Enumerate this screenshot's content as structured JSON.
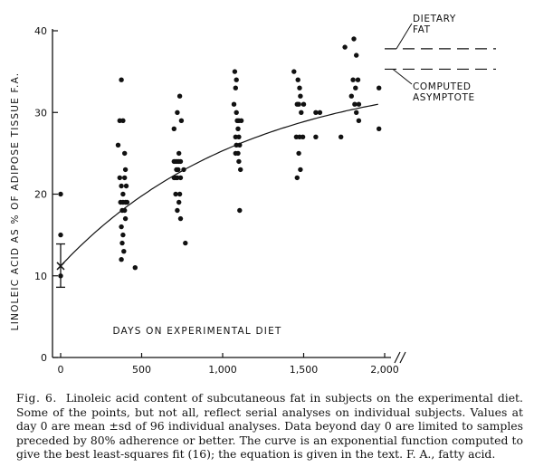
{
  "chart_data": {
    "type": "scatter",
    "xlabel": "DAYS ON EXPERIMENTAL DIET",
    "ylabel": "LINOLEIC ACID AS % OF ADIPOSE TISSUE F.A.",
    "xlim": [
      0,
      2000
    ],
    "ylim": [
      0,
      40
    ],
    "x_ticks": [
      "0",
      "500",
      "1,000",
      "1,500",
      "2,000"
    ],
    "y_ticks": [
      "0",
      "10",
      "20",
      "30",
      "40"
    ],
    "day0_mean": {
      "x": 0,
      "y": 11.2,
      "low": 8.6,
      "high": 13.9
    },
    "horizontal_lines": [
      {
        "label": "DIETARY FAT",
        "y": 37.8
      },
      {
        "label": "COMPUTED ASYMPTOTE",
        "y": 35.3
      }
    ],
    "fit_curve": {
      "type": "exponential",
      "x_range": [
        0,
        1960
      ],
      "y0": 11.2,
      "asymptote": 35.3,
      "rate_per_day": 0.00088
    },
    "points": [
      [
        0,
        20
      ],
      [
        0,
        15
      ],
      [
        0,
        10
      ],
      [
        355,
        26
      ],
      [
        365,
        29
      ],
      [
        375,
        34
      ],
      [
        385,
        29
      ],
      [
        395,
        25
      ],
      [
        400,
        23
      ],
      [
        365,
        22
      ],
      [
        375,
        21
      ],
      [
        385,
        20
      ],
      [
        395,
        22
      ],
      [
        405,
        21
      ],
      [
        370,
        19
      ],
      [
        385,
        19
      ],
      [
        400,
        19
      ],
      [
        410,
        19
      ],
      [
        380,
        18
      ],
      [
        395,
        18
      ],
      [
        400,
        17
      ],
      [
        375,
        16
      ],
      [
        385,
        15
      ],
      [
        380,
        14
      ],
      [
        390,
        13
      ],
      [
        375,
        12
      ],
      [
        460,
        11
      ],
      [
        700,
        28
      ],
      [
        720,
        30
      ],
      [
        735,
        32
      ],
      [
        745,
        29
      ],
      [
        730,
        25
      ],
      [
        700,
        24
      ],
      [
        710,
        24
      ],
      [
        720,
        24
      ],
      [
        730,
        24
      ],
      [
        740,
        24
      ],
      [
        715,
        23
      ],
      [
        725,
        23
      ],
      [
        700,
        22
      ],
      [
        710,
        22
      ],
      [
        720,
        22
      ],
      [
        740,
        22
      ],
      [
        760,
        23
      ],
      [
        710,
        20
      ],
      [
        735,
        20
      ],
      [
        730,
        19
      ],
      [
        720,
        18
      ],
      [
        740,
        17
      ],
      [
        770,
        14
      ],
      [
        1075,
        35
      ],
      [
        1085,
        34
      ],
      [
        1080,
        33
      ],
      [
        1070,
        31
      ],
      [
        1085,
        30
      ],
      [
        1090,
        29
      ],
      [
        1100,
        29
      ],
      [
        1115,
        29
      ],
      [
        1095,
        28
      ],
      [
        1080,
        27
      ],
      [
        1100,
        27
      ],
      [
        1085,
        26
      ],
      [
        1105,
        26
      ],
      [
        1080,
        25
      ],
      [
        1095,
        25
      ],
      [
        1100,
        24
      ],
      [
        1110,
        23
      ],
      [
        1105,
        18
      ],
      [
        1440,
        35
      ],
      [
        1465,
        34
      ],
      [
        1475,
        33
      ],
      [
        1480,
        32
      ],
      [
        1460,
        31
      ],
      [
        1470,
        31
      ],
      [
        1485,
        30
      ],
      [
        1500,
        31
      ],
      [
        1455,
        27
      ],
      [
        1475,
        27
      ],
      [
        1495,
        27
      ],
      [
        1575,
        30
      ],
      [
        1600,
        30
      ],
      [
        1575,
        27
      ],
      [
        1470,
        25
      ],
      [
        1480,
        23
      ],
      [
        1460,
        22
      ],
      [
        1755,
        38
      ],
      [
        1810,
        39
      ],
      [
        1825,
        37
      ],
      [
        1805,
        34
      ],
      [
        1820,
        33
      ],
      [
        1835,
        34
      ],
      [
        1795,
        32
      ],
      [
        1815,
        31
      ],
      [
        1840,
        31
      ],
      [
        1825,
        30
      ],
      [
        1840,
        29
      ],
      [
        1730,
        27
      ],
      [
        1965,
        33
      ],
      [
        1965,
        28
      ]
    ]
  },
  "caption": {
    "label": "Fig. 6.",
    "text": "Linoleic acid content of subcutaneous fat in subjects on the experimental diet. Some of the points, but not all, reflect serial analyses on individual subjects. Values at day 0 are mean ±sd of 96 individual analyses. Data beyond day 0 are limited to samples preceded by 80% adherence or better. The curve is an exponential function computed to give the best least-squares fit (16); the equation is given in the text. F. A., fatty acid."
  }
}
